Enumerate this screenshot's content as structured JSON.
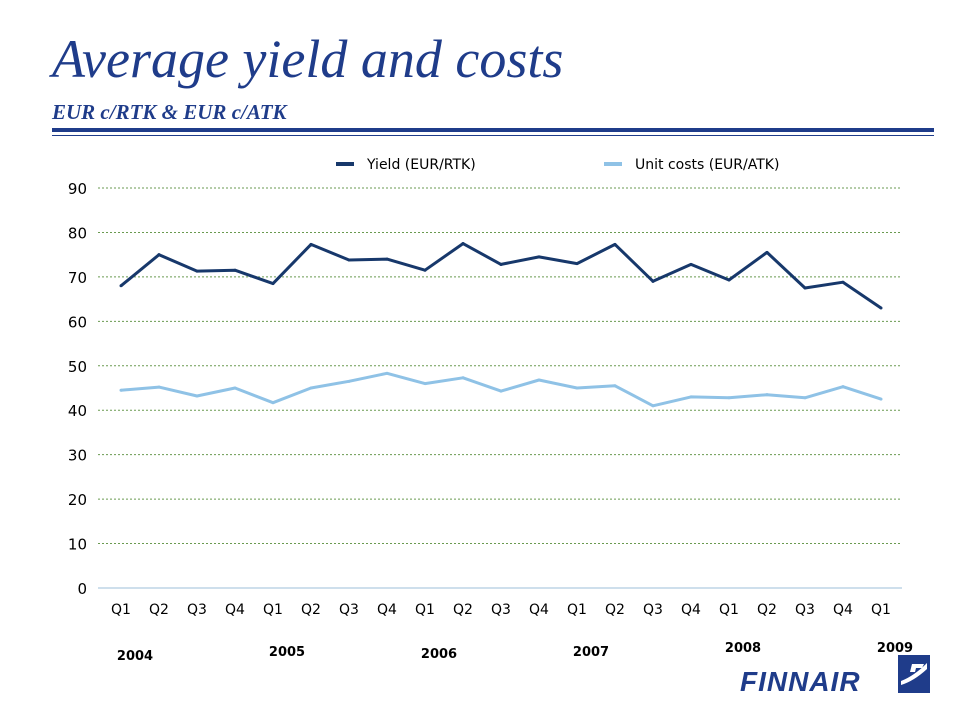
{
  "header": {
    "title": "Average yield and costs",
    "subtitle": "EUR c/RTK & EUR c/ATK"
  },
  "chart_data": {
    "type": "line",
    "categories": [
      "Q1",
      "Q2",
      "Q3",
      "Q4",
      "Q1",
      "Q2",
      "Q3",
      "Q4",
      "Q1",
      "Q2",
      "Q3",
      "Q4",
      "Q1",
      "Q2",
      "Q3",
      "Q4",
      "Q1",
      "Q2",
      "Q3",
      "Q4",
      "Q1"
    ],
    "year_labels": [
      {
        "label": "2004",
        "index": 0
      },
      {
        "label": "2005",
        "index": 4
      },
      {
        "label": "2006",
        "index": 8
      },
      {
        "label": "2007",
        "index": 12
      },
      {
        "label": "2008",
        "index": 16
      },
      {
        "label": "2009",
        "index": 20
      }
    ],
    "series": [
      {
        "name": "Yield (EUR/RTK)",
        "color": "#17386b",
        "values": [
          68.0,
          75.0,
          71.3,
          71.5,
          68.5,
          77.3,
          73.8,
          74.0,
          71.5,
          77.5,
          72.8,
          74.5,
          73.0,
          77.3,
          69.0,
          72.8,
          69.3,
          75.5,
          67.5,
          68.8,
          63.0
        ]
      },
      {
        "name": "Unit costs (EUR/ATK)",
        "color": "#8fc2e6",
        "values": [
          44.5,
          45.2,
          43.2,
          45.0,
          41.7,
          45.0,
          46.5,
          48.3,
          46.0,
          47.3,
          44.3,
          46.8,
          45.0,
          45.5,
          41.0,
          43.0,
          42.8,
          43.5,
          42.8,
          45.3,
          42.5
        ]
      }
    ],
    "ylim": [
      0,
      90
    ],
    "yticks": [
      0,
      10,
      20,
      30,
      40,
      50,
      60,
      70,
      80,
      90
    ],
    "grid": true,
    "legend_position": "top"
  },
  "logo": {
    "text": "FINNAIR",
    "color": "#1f3c8a"
  }
}
